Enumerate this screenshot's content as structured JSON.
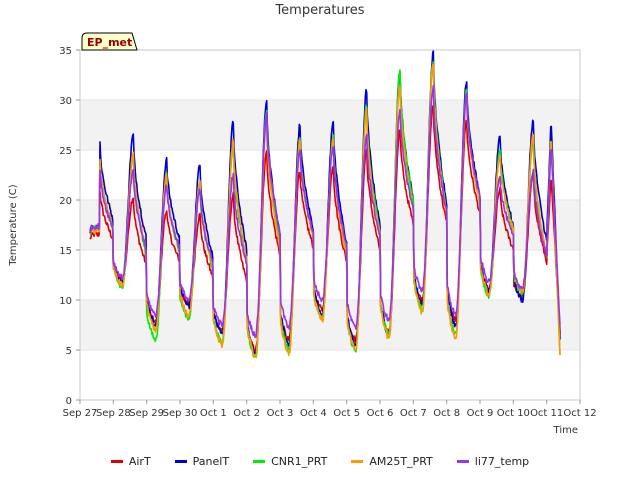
{
  "chart_data": {
    "type": "line",
    "title": "Temperatures",
    "xlabel": "Time",
    "ylabel": "Temperature (C)",
    "site_badge": "EP_met",
    "ylim": [
      0,
      35
    ],
    "y_ticks": [
      0,
      5,
      10,
      15,
      20,
      25,
      30,
      35
    ],
    "x_tick_labels": [
      "Sep 27",
      "Sep 28",
      "Sep 29",
      "Sep 30",
      "Oct 1",
      "Oct 2",
      "Oct 3",
      "Oct 4",
      "Oct 5",
      "Oct 6",
      "Oct 7",
      "Oct 8",
      "Oct 9",
      "Oct 10",
      "Oct 11",
      "Oct 12"
    ],
    "xlim_days": [
      0,
      15
    ],
    "data_start_day": 0.3,
    "data_end_day": 14.4,
    "grid": "horizontal bands",
    "legend_position": "bottom",
    "days": [
      "Sep 27",
      "Sep 28",
      "Sep 29",
      "Sep 30",
      "Oct 1",
      "Oct 2",
      "Oct 3",
      "Oct 4",
      "Oct 5",
      "Oct 6",
      "Oct 7",
      "Oct 8",
      "Oct 9",
      "Oct 10",
      "Oct 11"
    ],
    "series": [
      {
        "name": "AirT",
        "color": "#dd0000",
        "daily_min": [
          16.2,
          12.0,
          7.8,
          9.6,
          7.0,
          5.0,
          6.0,
          9.0,
          6.0,
          6.8,
          10.0,
          8.0,
          11.0,
          10.2,
          6.8
        ],
        "daily_max": [
          21.0,
          20.3,
          19.0,
          18.5,
          20.5,
          25.0,
          23.0,
          23.5,
          25.0,
          27.0,
          29.5,
          28.0,
          21.0,
          22.5,
          null
        ]
      },
      {
        "name": "PanelT",
        "color": "#0000cc",
        "daily_min": [
          17.0,
          11.7,
          7.5,
          9.4,
          6.5,
          4.6,
          5.5,
          8.6,
          5.5,
          6.5,
          9.5,
          7.5,
          10.8,
          10.0,
          6.0
        ],
        "daily_max": [
          25.7,
          26.5,
          24.0,
          23.5,
          27.8,
          30.0,
          27.5,
          28.0,
          31.0,
          33.0,
          34.7,
          32.0,
          26.5,
          28.0,
          null
        ]
      },
      {
        "name": "CNR1_PRT",
        "color": "#00ee00",
        "daily_min": [
          16.8,
          11.2,
          6.0,
          8.2,
          5.8,
          4.3,
          5.0,
          8.2,
          4.9,
          6.5,
          9.0,
          6.5,
          10.4,
          10.5,
          4.5
        ],
        "daily_max": [
          24.0,
          24.5,
          22.5,
          21.5,
          25.5,
          29.0,
          26.0,
          26.5,
          29.5,
          33.0,
          34.0,
          31.0,
          25.0,
          26.0,
          null
        ]
      },
      {
        "name": "AM25T_PRT",
        "color": "#ff9900",
        "daily_min": [
          16.6,
          11.5,
          7.0,
          8.5,
          5.5,
          4.4,
          4.6,
          8.0,
          5.0,
          6.2,
          8.8,
          6.2,
          10.6,
          10.8,
          4.4
        ],
        "daily_max": [
          24.2,
          24.5,
          22.5,
          22.0,
          26.0,
          28.0,
          26.0,
          26.0,
          29.0,
          31.5,
          33.5,
          30.5,
          24.5,
          26.5,
          null
        ]
      },
      {
        "name": "li77_temp",
        "color": "#9933ee",
        "daily_min": [
          17.0,
          12.3,
          8.5,
          10.0,
          7.5,
          6.5,
          7.2,
          10.0,
          7.2,
          8.0,
          11.0,
          8.5,
          11.8,
          11.2,
          7.5
        ],
        "daily_max": [
          23.0,
          22.8,
          21.5,
          21.0,
          22.5,
          28.5,
          25.0,
          25.5,
          26.5,
          29.0,
          31.3,
          30.5,
          22.5,
          23.0,
          null
        ]
      }
    ]
  }
}
